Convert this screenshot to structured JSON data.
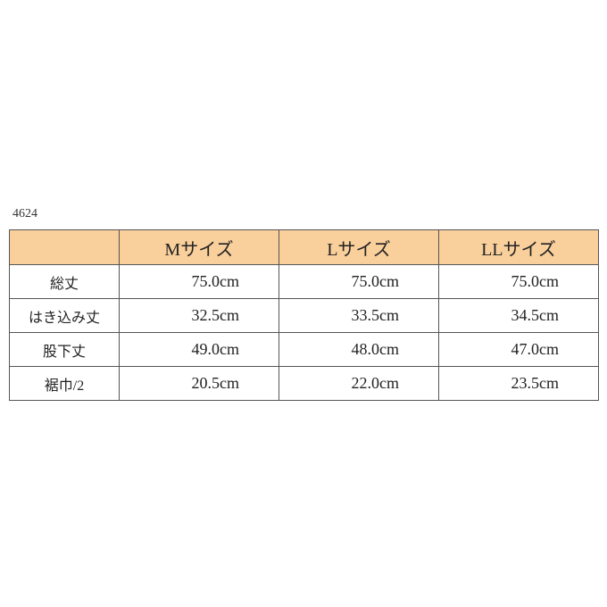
{
  "product_code": "4624",
  "header_color": "#f9cf9b",
  "table": {
    "columns": [
      "",
      "Mサイズ",
      "Lサイズ",
      "LLサイズ"
    ],
    "rows": [
      {
        "label": "総丈",
        "values": [
          "75.0cm",
          "75.0cm",
          "75.0cm"
        ]
      },
      {
        "label": "はき込み丈",
        "values": [
          "32.5cm",
          "33.5cm",
          "34.5cm"
        ]
      },
      {
        "label": "股下丈",
        "values": [
          "49.0cm",
          "48.0cm",
          "47.0cm"
        ]
      },
      {
        "label": "裾巾/2",
        "values": [
          "20.5cm",
          "22.0cm",
          "23.5cm"
        ]
      }
    ]
  }
}
